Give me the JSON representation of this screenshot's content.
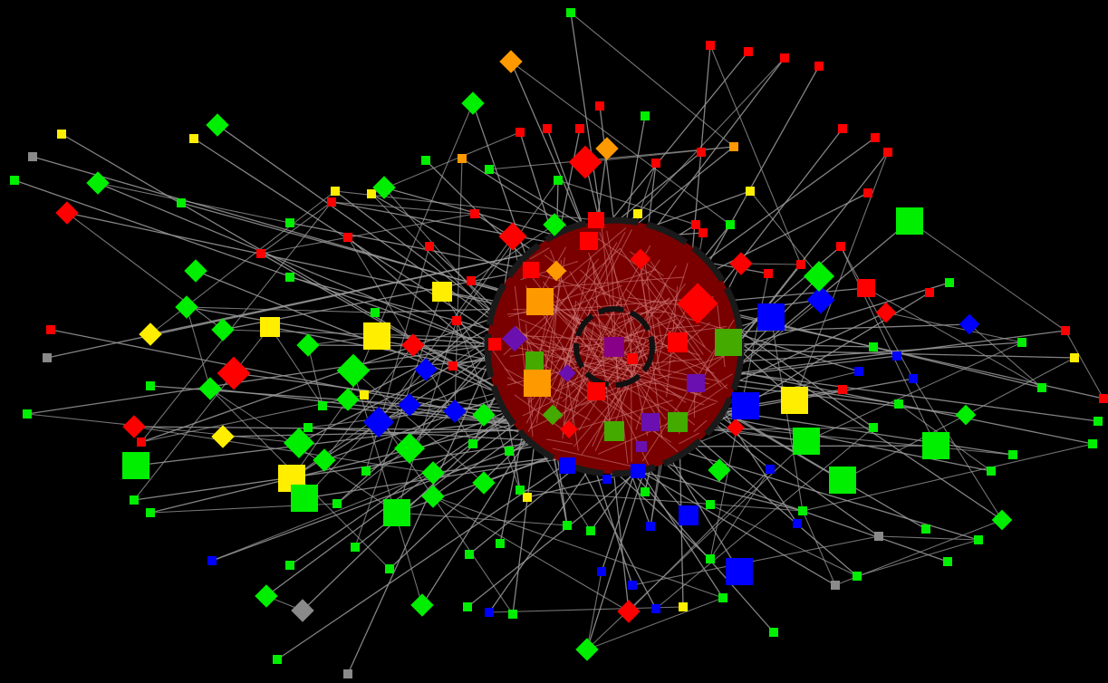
{
  "graph": {
    "background": "#000000",
    "edge_color": "#9a9a9a",
    "colors": {
      "green": "#00ee00",
      "red": "#ff0000",
      "yellow": "#ffee00",
      "blue": "#0000ff",
      "orange": "#ff9900",
      "purple": "#6a0fb0",
      "gray": "#8a8a8a",
      "olive": "#44aa00",
      "magenta": "#880088"
    },
    "highlight": {
      "fill": "#7a0000",
      "outer_ring": "#1a1a1a",
      "inner_ring": "#111111"
    }
  }
}
